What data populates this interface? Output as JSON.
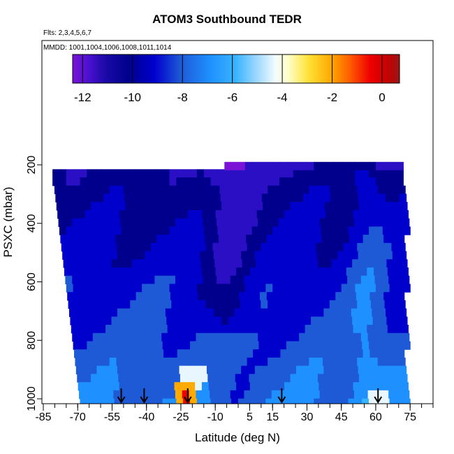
{
  "header": {
    "title": "ATOM3 Southbound TEDR",
    "flights": "Flts: 2,3,4,5,6,7",
    "mmdd": "MMDD: 1001,1004,1006,1008,1011,1014"
  },
  "colorbar": {
    "ticks": [
      "-12",
      "-10",
      "-8",
      "-6",
      "-4",
      "-2",
      "0"
    ],
    "range": [
      -12.4,
      0.7
    ],
    "colors": [
      "#7a13d6",
      "#2a0fc4",
      "#00008c",
      "#0000cd",
      "#1e5ad6",
      "#1e90ff",
      "#3ab4ff",
      "#87d0ff",
      "#e8f7ff",
      "#ffffc8",
      "#ffe23a",
      "#ffaa00",
      "#ff5a00",
      "#f00000",
      "#c80000",
      "#9b1515"
    ]
  },
  "chart_data": {
    "type": "heatmap",
    "title": "ATOM3 Southbound TEDR",
    "xlabel": "Latitude (deg N)",
    "ylabel": "PSXC (mbar)",
    "x_ticks": [
      "-85",
      "-70",
      "-55",
      "-40",
      "-25",
      "-10",
      "5",
      "15",
      "30",
      "45",
      "60",
      "75"
    ],
    "y_ticks": [
      "200",
      "400",
      "600",
      "800",
      "1000"
    ],
    "xlim": [
      -85,
      85
    ],
    "ylim": [
      1010,
      50
    ],
    "value_range": [
      -12.4,
      0.7
    ],
    "arrow_latitudes": [
      -51,
      -41,
      -22,
      19,
      61
    ]
  },
  "axes": {
    "x_ticks": [
      "-85",
      "-70",
      "-55",
      "-40",
      "-25",
      "-10",
      "5",
      "15",
      "30",
      "45",
      "60",
      "75"
    ],
    "y_ticks": [
      "200",
      "400",
      "600",
      "800",
      "1000"
    ],
    "xlabel": "Latitude (deg N)",
    "ylabel": "PSXC (mbar)"
  }
}
